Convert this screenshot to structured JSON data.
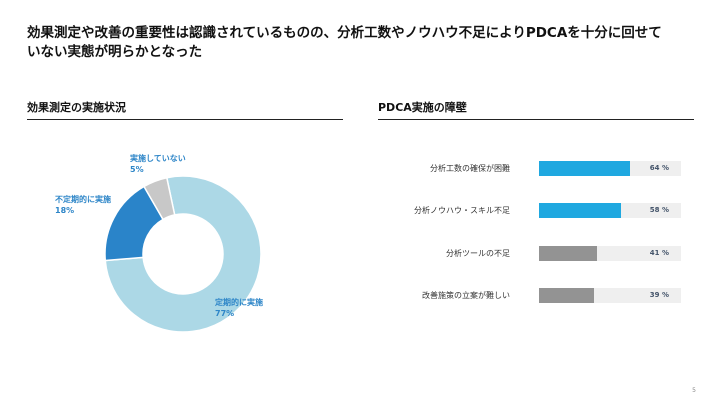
{
  "slide": {
    "title": "効果測定や改善の重要性は認識されているものの、分析工数やノウハウ不足によりPDCAを十分に回せていない実態が明らかとなった",
    "page_number": "5"
  },
  "left_section": {
    "header": "効果測定の実施状況"
  },
  "right_section": {
    "header": "PDCA実施の障壁"
  },
  "chart_data": [
    {
      "type": "pie",
      "title": "効果測定の実施状況",
      "slices": [
        {
          "label": "定期的に実施",
          "value": 77,
          "value_label": "77%",
          "color": "#acd8e6"
        },
        {
          "label": "不定期的に実施",
          "value": 18,
          "value_label": "18%",
          "color": "#2a84c9"
        },
        {
          "label": "実施していない",
          "value": 5,
          "value_label": "5%",
          "color": "#c8c8c8"
        }
      ]
    },
    {
      "type": "bar",
      "orientation": "horizontal",
      "title": "PDCA実施の障壁",
      "xlim": [
        0,
        100
      ],
      "bars": [
        {
          "label": "分析工数の確保が困難",
          "value": 64,
          "value_label": "64 %",
          "color": "#1fa8e0"
        },
        {
          "label": "分析ノウハウ・スキル不足",
          "value": 58,
          "value_label": "58 %",
          "color": "#1fa8e0"
        },
        {
          "label": "分析ツールの不足",
          "value": 41,
          "value_label": "41 %",
          "color": "#939393"
        },
        {
          "label": "改善施策の立案が難しい",
          "value": 39,
          "value_label": "39 %",
          "color": "#939393"
        }
      ]
    }
  ]
}
